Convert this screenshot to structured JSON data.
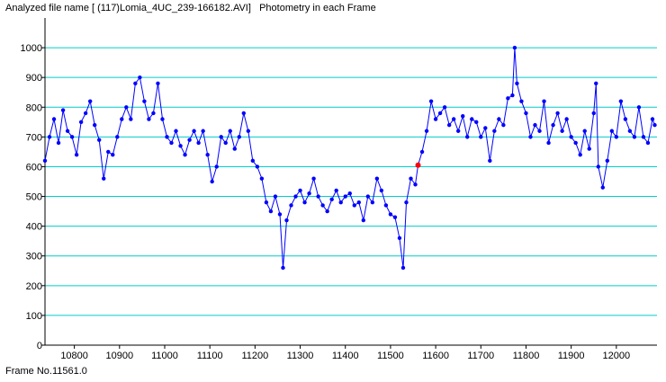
{
  "header": {
    "title": "Analyzed file name [ (117)Lomia_4UC_239-166182.AVI]   Photometry in each Frame"
  },
  "footer": {
    "frame_label": "Frame No.11561.0"
  },
  "colors": {
    "grid": "#00cccc",
    "series": "#0000ff",
    "marker": "#ff0000",
    "axis": "#000000"
  },
  "chart_data": {
    "type": "line",
    "title": "",
    "xlabel": "",
    "ylabel": "",
    "xlim": [
      10735,
      12090
    ],
    "ylim": [
      0,
      1100
    ],
    "xticks": [
      10800,
      10900,
      11000,
      11100,
      11200,
      11300,
      11400,
      11500,
      11600,
      11700,
      11800,
      11900,
      12000
    ],
    "yticks": [
      0,
      100,
      200,
      300,
      400,
      500,
      600,
      700,
      800,
      900,
      1000
    ],
    "grid": true,
    "markers": "dots",
    "current_frame": {
      "x": 11561,
      "y": 605
    },
    "series": [
      {
        "x": [
          10735,
          10745,
          10755,
          10765,
          10775,
          10785,
          10795,
          10805,
          10815,
          10825,
          10835,
          10845,
          10855,
          10865,
          10875,
          10885,
          10895,
          10905,
          10915,
          10925,
          10935,
          10945,
          10955,
          10965,
          10975,
          10985,
          10995,
          11005,
          11015,
          11025,
          11035,
          11045,
          11055,
          11065,
          11075,
          11085,
          11095,
          11105,
          11115,
          11125,
          11135,
          11145,
          11155,
          11165,
          11175,
          11185,
          11195,
          11205,
          11215,
          11225,
          11235,
          11245,
          11255,
          11262,
          11270,
          11280,
          11290,
          11300,
          11310,
          11320,
          11330,
          11340,
          11350,
          11360,
          11370,
          11380,
          11390,
          11400,
          11410,
          11420,
          11430,
          11440,
          11450,
          11460,
          11470,
          11480,
          11490,
          11500,
          11510,
          11520,
          11528,
          11535,
          11545,
          11555,
          11561,
          11570,
          11580,
          11590,
          11600,
          11610,
          11620,
          11630,
          11640,
          11650,
          11660,
          11670,
          11680,
          11690,
          11700,
          11710,
          11720,
          11730,
          11740,
          11750,
          11760,
          11770,
          11775,
          11780,
          11790,
          11800,
          11810,
          11820,
          11830,
          11840,
          11850,
          11860,
          11870,
          11880,
          11890,
          11900,
          11910,
          11920,
          11930,
          11940,
          11950,
          11955,
          11960,
          11970,
          11980,
          11990,
          12000,
          12010,
          12020,
          12030,
          12040,
          12050,
          12060,
          12070,
          12080,
          12085
        ],
        "y": [
          620,
          700,
          760,
          680,
          790,
          720,
          700,
          640,
          750,
          780,
          820,
          740,
          690,
          560,
          650,
          640,
          700,
          760,
          800,
          760,
          880,
          900,
          820,
          760,
          780,
          880,
          760,
          700,
          680,
          720,
          670,
          640,
          690,
          720,
          680,
          720,
          640,
          550,
          600,
          700,
          680,
          720,
          660,
          700,
          780,
          720,
          620,
          600,
          560,
          480,
          450,
          500,
          440,
          260,
          420,
          470,
          500,
          520,
          480,
          510,
          560,
          500,
          470,
          450,
          490,
          520,
          480,
          500,
          510,
          470,
          480,
          420,
          500,
          480,
          560,
          520,
          470,
          440,
          430,
          360,
          260,
          480,
          560,
          540,
          605,
          650,
          720,
          820,
          760,
          780,
          800,
          740,
          760,
          720,
          770,
          700,
          760,
          750,
          700,
          730,
          620,
          720,
          760,
          740,
          830,
          840,
          1000,
          880,
          820,
          780,
          700,
          740,
          720,
          820,
          680,
          740,
          780,
          720,
          760,
          700,
          680,
          640,
          720,
          660,
          780,
          880,
          600,
          530,
          620,
          720,
          700,
          820,
          760,
          720,
          700,
          800,
          700,
          680,
          760,
          740
        ]
      }
    ]
  }
}
